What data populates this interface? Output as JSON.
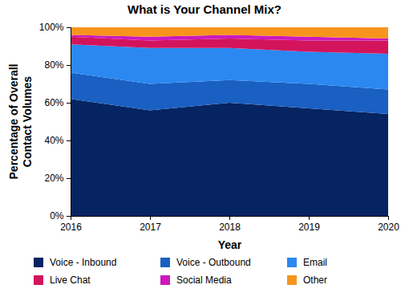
{
  "chart_data": {
    "type": "area",
    "title": "What is Your Channel Mix?",
    "x_label": "Year",
    "y_label": "Percentage of Overall Contact Volumes",
    "x": [
      2016,
      2017,
      2018,
      2019,
      2020
    ],
    "stacked": true,
    "grid": false,
    "legend": "bottom",
    "series": [
      {
        "name": "Voice - Inbound",
        "color": "#052461",
        "values": [
          62,
          56,
          60,
          57,
          54
        ]
      },
      {
        "name": "Voice - Outbound",
        "color": "#1a5fc2",
        "values": [
          14,
          14,
          12,
          13,
          13
        ]
      },
      {
        "name": "Email",
        "color": "#2b88f0",
        "values": [
          15,
          19,
          17,
          17,
          19
        ]
      },
      {
        "name": "Live Chat",
        "color": "#d3145c",
        "values": [
          4,
          4,
          5,
          6,
          7
        ]
      },
      {
        "name": "Social Media",
        "color": "#cc18bd",
        "values": [
          1,
          2,
          2,
          2,
          1
        ]
      },
      {
        "name": "Other",
        "color": "#f7941d",
        "values": [
          4,
          5,
          4,
          5,
          6
        ]
      }
    ],
    "xlim": [
      2016,
      2020
    ],
    "xticks": [
      2016,
      2017,
      2018,
      2019,
      2020
    ],
    "ylim": [
      0,
      100
    ],
    "yticks": [
      {
        "value": 0,
        "label": "0%"
      },
      {
        "value": 20,
        "label": "20%"
      },
      {
        "value": 40,
        "label": "40%"
      },
      {
        "value": 60,
        "label": "60%"
      },
      {
        "value": 80,
        "label": "80%"
      },
      {
        "value": 100,
        "label": "100%"
      }
    ]
  }
}
